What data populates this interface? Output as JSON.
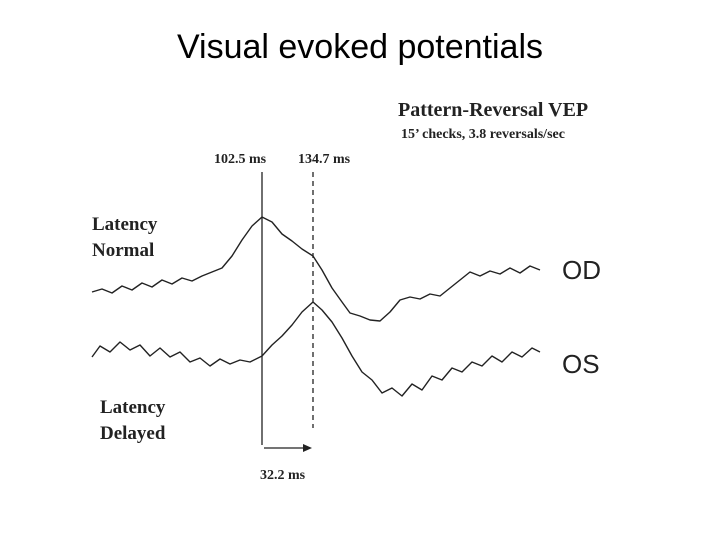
{
  "title": "Visual evoked potentials",
  "figure": {
    "heading": "Pattern-Reversal VEP",
    "subheading": "15’ checks, 3.8 reversals/sec",
    "markers": [
      "102.5 ms",
      "134.7 ms"
    ],
    "labels": {
      "normal": [
        "Latency",
        "Normal"
      ],
      "delayed": [
        "Latency",
        "Delayed"
      ]
    },
    "traces": [
      "OD",
      "OS"
    ],
    "difference": "32.2 ms"
  }
}
